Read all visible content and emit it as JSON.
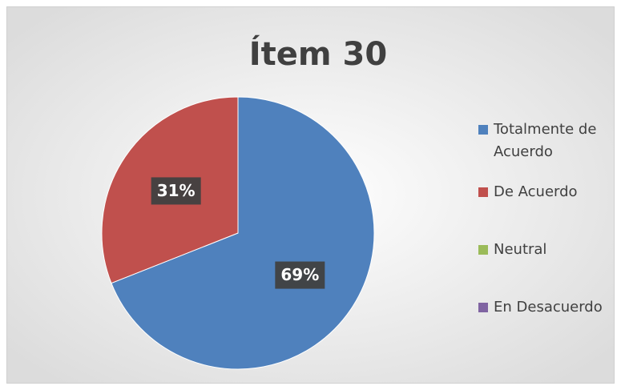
{
  "chart_data": {
    "type": "pie",
    "title": "Ítem 30",
    "categories": [
      "Totalmente de Acuerdo",
      "De Acuerdo",
      "Neutral",
      "En Desacuerdo"
    ],
    "values": [
      69,
      31,
      0,
      0
    ],
    "value_labels": [
      "69%",
      "31%",
      null,
      null
    ],
    "colors": [
      "#4f81bd",
      "#c0504d",
      "#9bbb59",
      "#8064a2"
    ],
    "legend": "right"
  }
}
